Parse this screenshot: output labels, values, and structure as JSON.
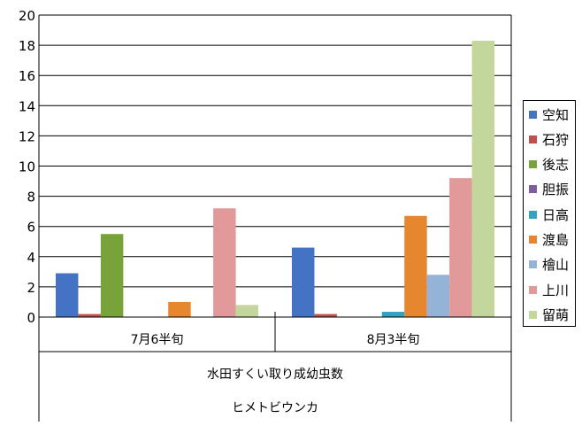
{
  "chart_data": {
    "type": "bar",
    "categories": [
      "7月6半旬",
      "8月3半旬"
    ],
    "group_label": "水田すくい取り成幼虫数",
    "subgroup_label": "ヒメトビウンカ",
    "ylim": [
      0,
      20
    ],
    "yticks": [
      "0",
      "2",
      "4",
      "6",
      "8",
      "10",
      "12",
      "14",
      "16",
      "18",
      "20"
    ],
    "grid": true,
    "legend_position": "right",
    "series": [
      {
        "name": "空知",
        "color": "#4472C4",
        "values": [
          2.9,
          4.6
        ]
      },
      {
        "name": "石狩",
        "color": "#C0504D",
        "values": [
          0.2,
          0.2
        ]
      },
      {
        "name": "後志",
        "color": "#77A33A",
        "values": [
          5.5,
          0
        ]
      },
      {
        "name": "胆振",
        "color": "#7D5FA0",
        "values": [
          0,
          0
        ]
      },
      {
        "name": "日高",
        "color": "#31A2C0",
        "values": [
          0,
          0.35
        ]
      },
      {
        "name": "渡島",
        "color": "#E6862E",
        "values": [
          1.0,
          6.7
        ]
      },
      {
        "name": "檜山",
        "color": "#95B3D7",
        "values": [
          0,
          2.8
        ]
      },
      {
        "name": "上川",
        "color": "#E2999A",
        "values": [
          7.2,
          9.2
        ]
      },
      {
        "name": "留萌",
        "color": "#C3D69B",
        "values": [
          0.8,
          18.3
        ]
      }
    ]
  }
}
